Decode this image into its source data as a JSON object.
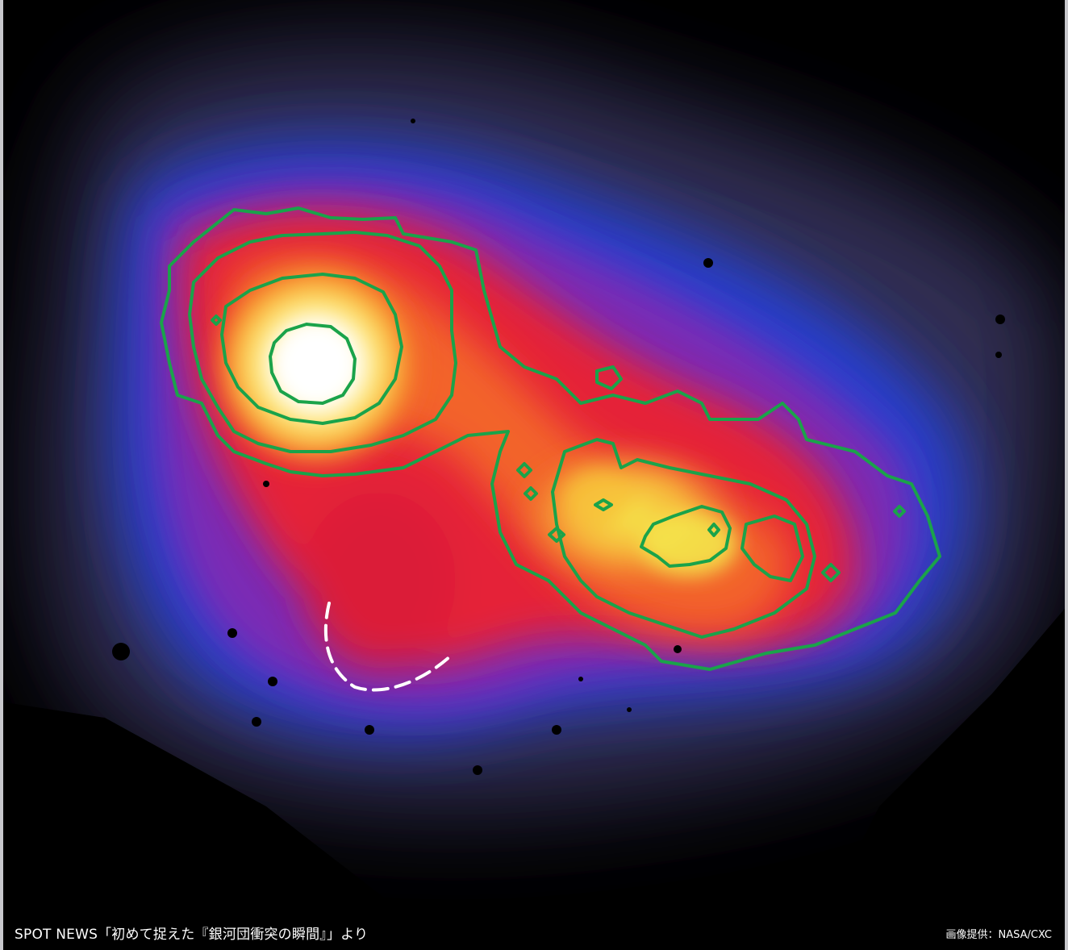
{
  "captions": {
    "source": "SPOT NEWS「初めて捉えた『銀河団衝突の瞬間』」より",
    "credit": "画像提供：NASA/CXC"
  },
  "image": {
    "subject": "x-ray-galaxy-cluster-collision",
    "overlay_contours_color": "#1aa34a",
    "marker_arc_color": "#ffffff",
    "frame_border_color": "#c8c8cc",
    "palette": [
      "#000000",
      "#2a1f4a",
      "#2b3fd6",
      "#7a2ab8",
      "#e8203a",
      "#f46a2a",
      "#f9c02a",
      "#fff59a",
      "#ffffff"
    ]
  }
}
